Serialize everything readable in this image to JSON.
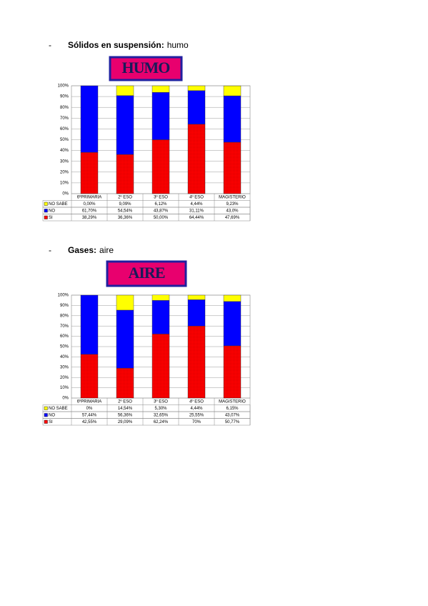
{
  "sections": [
    {
      "bullet": "-",
      "heading_bold": "Sólidos en suspensión:",
      "heading_rest": "humo"
    },
    {
      "bullet": "-",
      "heading_bold": "Gases:",
      "heading_rest": "aire"
    }
  ],
  "chart_data": [
    {
      "type": "stacked-bar",
      "title": "HUMO",
      "categories": [
        "6ºPRIMARIA",
        "2º ESO",
        "3º ESO",
        "4º ESO",
        "MAGISTERIO"
      ],
      "series": [
        {
          "name": "SI",
          "color": "#ff0000",
          "values": [
            38.29,
            36.36,
            50.0,
            64.44,
            47.69
          ],
          "value_labels": [
            "38,29%",
            "36,36%",
            "50,00%",
            "64,44%",
            "47,69%"
          ]
        },
        {
          "name": "NO",
          "color": "#0000ff",
          "values": [
            61.7,
            54.54,
            43.87,
            31.11,
            43.0
          ],
          "value_labels": [
            "61,70%",
            "54,54%",
            "43,87%",
            "31,11%",
            "43,0%"
          ]
        },
        {
          "name": "NO SABE",
          "color": "#ffff00",
          "values": [
            0.0,
            9.09,
            6.12,
            4.44,
            9.23
          ],
          "value_labels": [
            "0,00%",
            "9,09%",
            "6,12%",
            "4,44%",
            "9,23%"
          ]
        }
      ],
      "ylim": [
        0,
        100
      ],
      "yticks": [
        {
          "value": 0,
          "label": "0%"
        },
        {
          "value": 10,
          "label": "10%"
        },
        {
          "value": 20,
          "label": "20%"
        },
        {
          "value": 30,
          "label": "30%"
        },
        {
          "value": 40,
          "label": "40%"
        },
        {
          "value": 50,
          "label": "50%"
        },
        {
          "value": 60,
          "label": "60%"
        },
        {
          "value": 70,
          "label": "70%"
        },
        {
          "value": 80,
          "label": "80%"
        },
        {
          "value": 90,
          "label": "90%"
        },
        {
          "value": 100,
          "label": "100%"
        }
      ],
      "grid": true
    },
    {
      "type": "stacked-bar",
      "title": "AIRE",
      "categories": [
        "6ºPRIMARIA",
        "2º ESO",
        "3º ESO",
        "4º ESO",
        "MAGISTERIO"
      ],
      "series": [
        {
          "name": "SI",
          "color": "#ff0000",
          "values": [
            42.55,
            29.09,
            62.24,
            70,
            50.77
          ],
          "value_labels": [
            "42,55%",
            "29,09%",
            "62,24%",
            "70%",
            "50,77%"
          ]
        },
        {
          "name": "NO",
          "color": "#0000ff",
          "values": [
            57.44,
            56.36,
            32.65,
            25.55,
            43.07
          ],
          "value_labels": [
            "57,44%",
            "56,36%",
            "32,65%",
            "25,55%",
            "43,07%"
          ]
        },
        {
          "name": "NO SABE",
          "color": "#ffff00",
          "values": [
            0,
            14.54,
            5.3,
            4.44,
            6.15
          ],
          "value_labels": [
            "0%",
            "14,54%",
            "5,30%",
            "4,44%",
            "6,15%"
          ]
        }
      ],
      "ylim": [
        0,
        100
      ],
      "yticks": [
        {
          "value": 0,
          "label": "0%"
        },
        {
          "value": 10,
          "label": "10%"
        },
        {
          "value": 20,
          "label": "20%"
        },
        {
          "value": 30,
          "label": "30%"
        },
        {
          "value": 40,
          "label": "40%"
        },
        {
          "value": 50,
          "label": "50%"
        },
        {
          "value": 60,
          "label": "60%"
        },
        {
          "value": 70,
          "label": "70%"
        },
        {
          "value": 80,
          "label": "80%"
        },
        {
          "value": 90,
          "label": "90%"
        },
        {
          "value": 100,
          "label": "100%"
        }
      ],
      "grid": true
    }
  ]
}
